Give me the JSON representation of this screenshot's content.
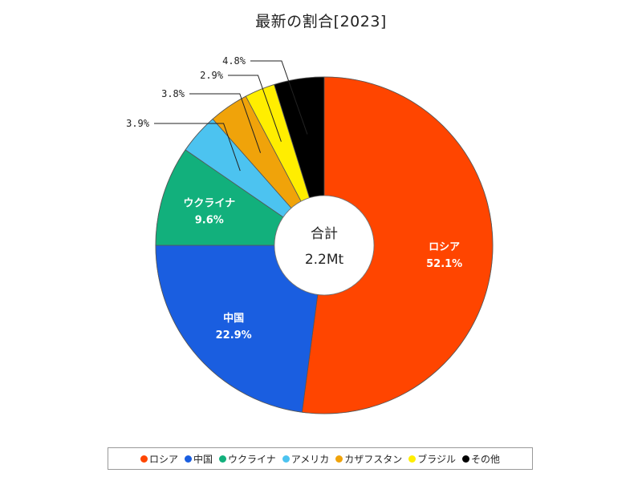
{
  "chart_data": {
    "type": "pie",
    "title": "最新の割合[2023]",
    "center_label": "合計",
    "center_value": "2.2Mt",
    "slices": [
      {
        "name": "ロシア",
        "value": 52.1,
        "label": "52.1%",
        "color": "#ff4500"
      },
      {
        "name": "中国",
        "value": 22.9,
        "label": "22.9%",
        "color": "#1a5ee0"
      },
      {
        "name": "ウクライナ",
        "value": 9.6,
        "label": "9.6%",
        "color": "#12b07c"
      },
      {
        "name": "アメリカ",
        "value": 3.9,
        "label": "3.9%",
        "color": "#4cc3f0"
      },
      {
        "name": "カザフスタン",
        "value": 3.8,
        "label": "3.8%",
        "color": "#f0a30a"
      },
      {
        "name": "ブラジル",
        "value": 2.9,
        "label": "2.9%",
        "color": "#ffee00"
      },
      {
        "name": "その他",
        "value": 4.8,
        "label": "4.8%",
        "color": "#000000"
      }
    ],
    "legend_position": "bottom"
  }
}
